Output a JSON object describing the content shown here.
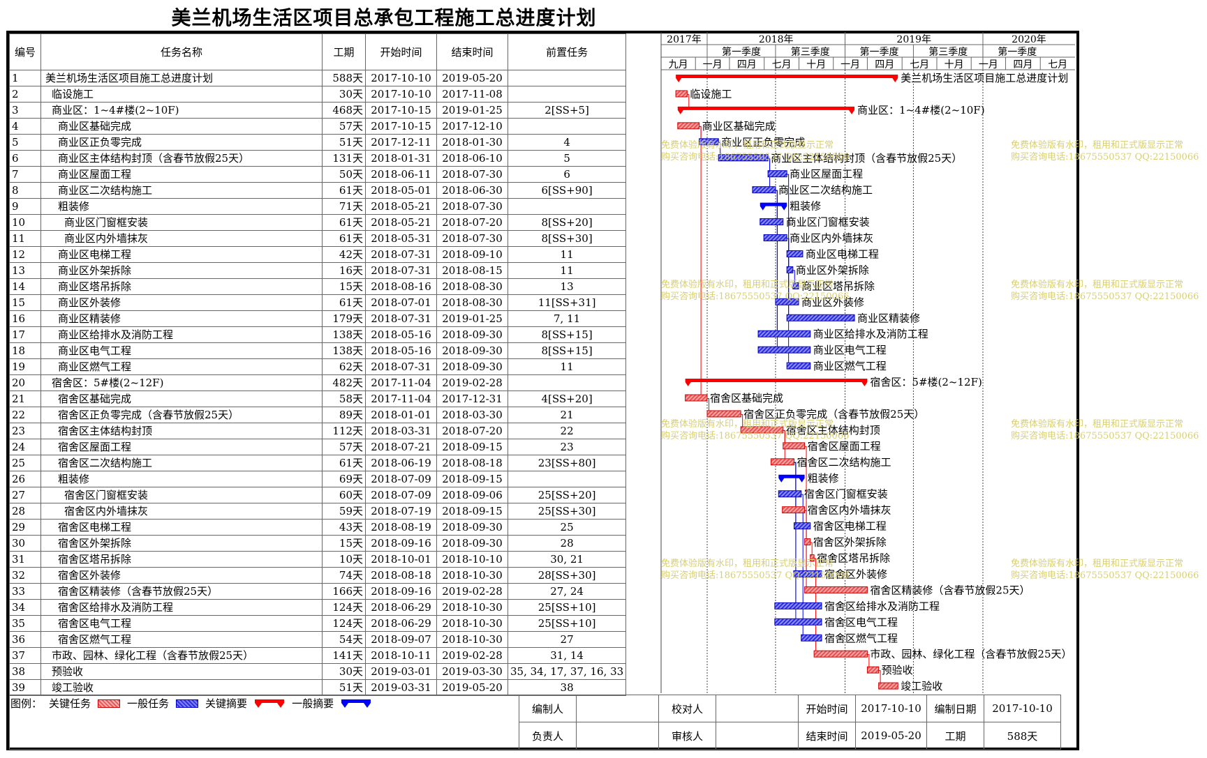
{
  "title": "美兰机场生活区项目总承包工程施工总进度计划",
  "columns": {
    "num": "编号",
    "name": "任务名称",
    "dur": "工期",
    "start": "开始时间",
    "end": "结束时间",
    "pred": "前置任务"
  },
  "timeline": {
    "years": [
      "2017年",
      "2018年",
      "2019年",
      "2020年"
    ],
    "quarters": [
      "第一季度",
      "第三季度",
      "第一季度",
      "第三季度",
      "第一季度"
    ],
    "months": [
      "九月",
      "一月",
      "四月",
      "七月",
      "十月",
      "一月",
      "四月",
      "七月",
      "十月",
      "一月",
      "四月",
      "七月"
    ]
  },
  "tasks": [
    {
      "id": "1",
      "name": "美兰机场生活区项目施工总进度计划",
      "indent": 0,
      "dur": "588天",
      "start": "2017-10-10",
      "end": "2019-05-20",
      "pred": "",
      "kind": "sum-crit"
    },
    {
      "id": "2",
      "name": "临设施工",
      "indent": 1,
      "dur": "30天",
      "start": "2017-10-10",
      "end": "2017-11-08",
      "pred": "",
      "kind": "crit"
    },
    {
      "id": "3",
      "name": "商业区：1~4#楼(2~10F)",
      "indent": 1,
      "dur": "468天",
      "start": "2017-10-15",
      "end": "2019-01-25",
      "pred": "2[SS+5]",
      "kind": "sum-crit"
    },
    {
      "id": "4",
      "name": "商业区基础完成",
      "indent": 2,
      "dur": "57天",
      "start": "2017-10-15",
      "end": "2017-12-10",
      "pred": "",
      "kind": "crit"
    },
    {
      "id": "5",
      "name": "商业区正负零完成",
      "indent": 2,
      "dur": "51天",
      "start": "2017-12-11",
      "end": "2018-01-30",
      "pred": "4",
      "kind": "norm"
    },
    {
      "id": "6",
      "name": "商业区主体结构封顶（含春节放假25天）",
      "indent": 2,
      "dur": "131天",
      "start": "2018-01-31",
      "end": "2018-06-10",
      "pred": "5",
      "kind": "norm"
    },
    {
      "id": "7",
      "name": "商业区屋面工程",
      "indent": 2,
      "dur": "50天",
      "start": "2018-06-11",
      "end": "2018-07-30",
      "pred": "6",
      "kind": "norm"
    },
    {
      "id": "8",
      "name": "商业区二次结构施工",
      "indent": 2,
      "dur": "61天",
      "start": "2018-05-01",
      "end": "2018-06-30",
      "pred": "6[SS+90]",
      "kind": "norm"
    },
    {
      "id": "9",
      "name": "粗装修",
      "indent": 2,
      "dur": "71天",
      "start": "2018-05-21",
      "end": "2018-07-30",
      "pred": "",
      "kind": "sum-norm"
    },
    {
      "id": "10",
      "name": "商业区门窗框安装",
      "indent": 3,
      "dur": "61天",
      "start": "2018-05-21",
      "end": "2018-07-20",
      "pred": "8[SS+20]",
      "kind": "norm"
    },
    {
      "id": "11",
      "name": "商业区内外墙抹灰",
      "indent": 3,
      "dur": "61天",
      "start": "2018-05-31",
      "end": "2018-07-30",
      "pred": "8[SS+30]",
      "kind": "norm"
    },
    {
      "id": "12",
      "name": "商业区电梯工程",
      "indent": 2,
      "dur": "42天",
      "start": "2018-07-31",
      "end": "2018-09-10",
      "pred": "11",
      "kind": "norm"
    },
    {
      "id": "13",
      "name": "商业区外架拆除",
      "indent": 2,
      "dur": "16天",
      "start": "2018-07-31",
      "end": "2018-08-15",
      "pred": "11",
      "kind": "norm"
    },
    {
      "id": "14",
      "name": "商业区塔吊拆除",
      "indent": 2,
      "dur": "15天",
      "start": "2018-08-16",
      "end": "2018-08-30",
      "pred": "13",
      "kind": "norm"
    },
    {
      "id": "15",
      "name": "商业区外装修",
      "indent": 2,
      "dur": "61天",
      "start": "2018-07-01",
      "end": "2018-08-30",
      "pred": "11[SS+31]",
      "kind": "norm"
    },
    {
      "id": "16",
      "name": "商业区精装修",
      "indent": 2,
      "dur": "179天",
      "start": "2018-07-31",
      "end": "2019-01-25",
      "pred": "7, 11",
      "kind": "norm"
    },
    {
      "id": "17",
      "name": "商业区给排水及消防工程",
      "indent": 2,
      "dur": "138天",
      "start": "2018-05-16",
      "end": "2018-09-30",
      "pred": "8[SS+15]",
      "kind": "norm"
    },
    {
      "id": "18",
      "name": "商业区电气工程",
      "indent": 2,
      "dur": "138天",
      "start": "2018-05-16",
      "end": "2018-09-30",
      "pred": "8[SS+15]",
      "kind": "norm"
    },
    {
      "id": "19",
      "name": "商业区燃气工程",
      "indent": 2,
      "dur": "62天",
      "start": "2018-07-31",
      "end": "2018-09-30",
      "pred": "11",
      "kind": "norm"
    },
    {
      "id": "20",
      "name": "宿舍区：5#楼(2~12F)",
      "indent": 1,
      "dur": "482天",
      "start": "2017-11-04",
      "end": "2019-02-28",
      "pred": "",
      "kind": "sum-crit"
    },
    {
      "id": "21",
      "name": "宿舍区基础完成",
      "indent": 2,
      "dur": "58天",
      "start": "2017-11-04",
      "end": "2017-12-31",
      "pred": "4[SS+20]",
      "kind": "crit"
    },
    {
      "id": "22",
      "name": "宿舍区正负零完成（含春节放假25天）",
      "indent": 2,
      "dur": "89天",
      "start": "2018-01-01",
      "end": "2018-03-30",
      "pred": "21",
      "kind": "crit"
    },
    {
      "id": "23",
      "name": "宿舍区主体结构封顶",
      "indent": 2,
      "dur": "112天",
      "start": "2018-03-31",
      "end": "2018-07-20",
      "pred": "22",
      "kind": "crit"
    },
    {
      "id": "24",
      "name": "宿舍区屋面工程",
      "indent": 2,
      "dur": "57天",
      "start": "2018-07-21",
      "end": "2018-09-15",
      "pred": "23",
      "kind": "crit"
    },
    {
      "id": "25",
      "name": "宿舍区二次结构施工",
      "indent": 2,
      "dur": "61天",
      "start": "2018-06-19",
      "end": "2018-08-18",
      "pred": "23[SS+80]",
      "kind": "crit"
    },
    {
      "id": "26",
      "name": "粗装修",
      "indent": 2,
      "dur": "69天",
      "start": "2018-07-09",
      "end": "2018-09-15",
      "pred": "",
      "kind": "sum-norm"
    },
    {
      "id": "27",
      "name": "宿舍区门窗框安装",
      "indent": 3,
      "dur": "60天",
      "start": "2018-07-09",
      "end": "2018-09-06",
      "pred": "25[SS+20]",
      "kind": "norm"
    },
    {
      "id": "28",
      "name": "宿舍区内外墙抹灰",
      "indent": 3,
      "dur": "59天",
      "start": "2018-07-19",
      "end": "2018-09-15",
      "pred": "25[SS+30]",
      "kind": "crit"
    },
    {
      "id": "29",
      "name": "宿舍区电梯工程",
      "indent": 2,
      "dur": "43天",
      "start": "2018-08-19",
      "end": "2018-09-30",
      "pred": "25",
      "kind": "norm"
    },
    {
      "id": "30",
      "name": "宿舍区外架拆除",
      "indent": 2,
      "dur": "15天",
      "start": "2018-09-16",
      "end": "2018-09-30",
      "pred": "28",
      "kind": "crit"
    },
    {
      "id": "31",
      "name": "宿舍区塔吊拆除",
      "indent": 2,
      "dur": "10天",
      "start": "2018-10-01",
      "end": "2018-10-10",
      "pred": "30, 21",
      "kind": "crit"
    },
    {
      "id": "32",
      "name": "宿舍区外装修",
      "indent": 2,
      "dur": "74天",
      "start": "2018-08-18",
      "end": "2018-10-30",
      "pred": "28[SS+30]",
      "kind": "norm"
    },
    {
      "id": "33",
      "name": "宿舍区精装修（含春节放假25天）",
      "indent": 2,
      "dur": "166天",
      "start": "2018-09-16",
      "end": "2019-02-28",
      "pred": "27, 24",
      "kind": "crit"
    },
    {
      "id": "34",
      "name": "宿舍区给排水及消防工程",
      "indent": 2,
      "dur": "124天",
      "start": "2018-06-29",
      "end": "2018-10-30",
      "pred": "25[SS+10]",
      "kind": "norm"
    },
    {
      "id": "35",
      "name": "宿舍区电气工程",
      "indent": 2,
      "dur": "124天",
      "start": "2018-06-29",
      "end": "2018-10-30",
      "pred": "25[SS+10]",
      "kind": "norm"
    },
    {
      "id": "36",
      "name": "宿舍区燃气工程",
      "indent": 2,
      "dur": "54天",
      "start": "2018-09-07",
      "end": "2018-10-30",
      "pred": "27",
      "kind": "norm"
    },
    {
      "id": "37",
      "name": "市政、园林、绿化工程（含春节放假25天）",
      "indent": 1,
      "dur": "141天",
      "start": "2018-10-11",
      "end": "2019-02-28",
      "pred": "31, 14",
      "kind": "crit"
    },
    {
      "id": "38",
      "name": "预验收",
      "indent": 1,
      "dur": "30天",
      "start": "2019-03-01",
      "end": "2019-03-30",
      "pred": "35, 34, 17, 37, 16, 33",
      "kind": "crit"
    },
    {
      "id": "39",
      "name": "竣工验收",
      "indent": 1,
      "dur": "51天",
      "start": "2019-03-31",
      "end": "2019-05-20",
      "pred": "38",
      "kind": "crit"
    }
  ],
  "chart_data": {
    "type": "gantt",
    "title": "美兰机场生活区项目总承包工程施工总进度计划",
    "x_range": [
      "2017-09-01",
      "2020-09-01"
    ],
    "bar_labels": "task names",
    "series": [
      {
        "name": "关键任务",
        "color": "#f08080"
      },
      {
        "name": "一般任务",
        "color": "#5858e8"
      },
      {
        "name": "关键摘要",
        "color": "#ff0000"
      },
      {
        "name": "一般摘要",
        "color": "#0000ff"
      }
    ]
  },
  "legend": {
    "label": "图例：",
    "crit": "关键任务",
    "norm": "一般任务",
    "sum_crit": "关键摘要",
    "sum_norm": "一般摘要"
  },
  "footer": {
    "compiler_label": "编制人",
    "checker_label": "校对人",
    "start_label": "开始时间",
    "start_value": "2017-10-10",
    "date_label": "编制日期",
    "date_value": "2017-10-10",
    "owner_label": "负责人",
    "reviewer_label": "审核人",
    "end_label": "结束时间",
    "end_value": "2019-05-20",
    "dur_label": "工期",
    "dur_value": "588天"
  },
  "watermark": [
    "免费体验版有水印，租用和正式版显示正常",
    "购买咨询电话:18675550537 QQ:22150066"
  ],
  "colors": {
    "critical": "#e84848",
    "normal": "#3030e0",
    "summary_critical": "#ff0000",
    "summary_normal": "#0000ff"
  }
}
